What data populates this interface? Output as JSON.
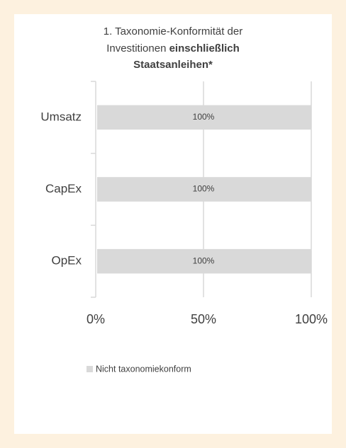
{
  "chart_data": {
    "type": "bar",
    "orientation": "horizontal",
    "title": [
      "1. Taxonomie-Konformität der",
      "Investitionen",
      "einschließlich",
      "Staatsanleihen*"
    ],
    "categories": [
      "Umsatz",
      "CapEx",
      "OpEx"
    ],
    "series": [
      {
        "name": "Nicht taxonomiekonform",
        "color": "#d9d9d9",
        "values": [
          100,
          100,
          100
        ],
        "value_labels": [
          "100%",
          "100%",
          "100%"
        ]
      }
    ],
    "xlim": [
      0,
      100
    ],
    "xticks": [
      {
        "value": 0,
        "label": "0%"
      },
      {
        "value": 50,
        "label": "50%"
      },
      {
        "value": 100,
        "label": "100%"
      }
    ],
    "grid": true,
    "legend": "bottom"
  }
}
